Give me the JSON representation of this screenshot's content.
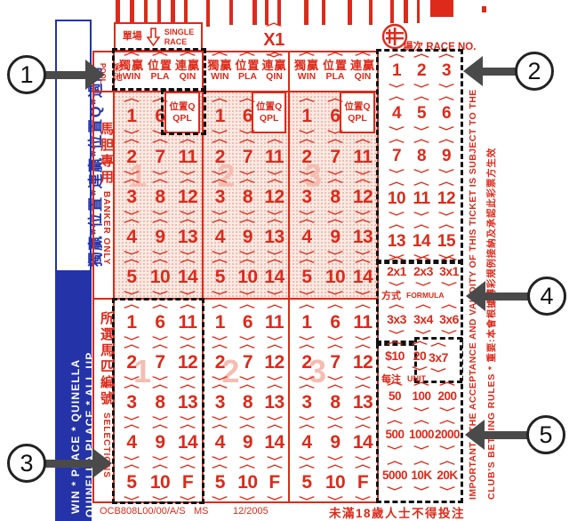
{
  "colors": {
    "red": "#dd2a1a",
    "blue": "#2433a8",
    "pink_shade": "#fbeae4",
    "callout_gray": "#4a4a4a"
  },
  "barcode_bars": [
    [
      130,
      0,
      5,
      30
    ],
    [
      146,
      0,
      5,
      30
    ],
    [
      162,
      0,
      4,
      30
    ],
    [
      177,
      0,
      4,
      30
    ],
    [
      192,
      0,
      5,
      30
    ],
    [
      207,
      0,
      4,
      30
    ],
    [
      232,
      0,
      4,
      30
    ],
    [
      258,
      0,
      4,
      28
    ],
    [
      284,
      0,
      5,
      28
    ],
    [
      298,
      0,
      4,
      28
    ],
    [
      312,
      0,
      4,
      28
    ],
    [
      342,
      0,
      5,
      28
    ],
    [
      362,
      0,
      4,
      28
    ],
    [
      391,
      0,
      5,
      28
    ],
    [
      415,
      0,
      4,
      28
    ],
    [
      439,
      0,
      4,
      26
    ],
    [
      454,
      0,
      5,
      26
    ],
    [
      469,
      0,
      3,
      26
    ],
    [
      484,
      0,
      26,
      19
    ],
    [
      542,
      7,
      5,
      7
    ]
  ],
  "blue_band": {
    "pools_vertical": "獨贏*位置*連贏*位置Q*過關",
    "pools_en_line1": "WIN * PLACE * QUINELLA",
    "pools_en_line2": "QUINELLA PLACE * ALL UP"
  },
  "top": {
    "single_race_zh": "單場",
    "single_race_en_1": "SINGLE",
    "single_race_en_2": "RACE",
    "multiplier": "X1",
    "race_no_label": "場次 RACE NO."
  },
  "gutter": {
    "pool_zh": "彩池",
    "pool_en": "POOL",
    "banker_zh": "馬胆專用",
    "banker_en": "BANKER ONLY",
    "selections_zh": "所選馬匹編號",
    "selections_en": "SELECTIONS"
  },
  "sections": {
    "headers": [
      {
        "zh": "獨贏",
        "en": "WIN"
      },
      {
        "zh": "位置",
        "en": "PLA"
      },
      {
        "zh": "連贏",
        "en": "QIN"
      }
    ],
    "qpl_zh": "位置Q",
    "qpl_en": "QPL",
    "watermarks": [
      "1",
      "2",
      "3"
    ],
    "banker_rows": [
      [
        "1",
        "6"
      ],
      [
        "2",
        "7",
        "11"
      ],
      [
        "3",
        "8",
        "12"
      ],
      [
        "4",
        "9",
        "13"
      ],
      [
        "5",
        "10",
        "14"
      ]
    ],
    "selection_rows": [
      [
        "1",
        "6",
        "11"
      ],
      [
        "2",
        "7",
        "12"
      ],
      [
        "3",
        "8",
        "13"
      ],
      [
        "4",
        "9",
        "14"
      ],
      [
        "5",
        "10",
        "F"
      ]
    ]
  },
  "race_no": {
    "rows": [
      [
        "1",
        "2",
        "3"
      ],
      [
        "4",
        "5",
        "6"
      ],
      [
        "7",
        "8",
        "9"
      ],
      [
        "10",
        "11",
        "12"
      ],
      [
        "13",
        "14",
        "15"
      ]
    ]
  },
  "formula": {
    "label_zh": "方式",
    "label_en": "FORMULA",
    "row1": [
      "2x1",
      "2x3",
      "3x1"
    ],
    "row2": [
      "3x3",
      "3x4",
      "3x6"
    ],
    "extra": "3x7"
  },
  "unit": {
    "label_zh": "每注",
    "label_en": "UNIT",
    "row1": [
      "$10",
      "20"
    ],
    "rows": [
      [
        "50",
        "100",
        "200"
      ],
      [
        "500",
        "1000",
        "2000"
      ],
      [
        "5000",
        "10K",
        "20K"
      ]
    ]
  },
  "side_note": {
    "line1": "IMPORTANT : THE ACCEPTANCE AND VALIDITY OF THIS TICKET IS SUBJECT TO THE",
    "line2": "CLUB'S BETTING RULES * 重要:本會根據博彩規例接納及承認此彩票方生效"
  },
  "footer": {
    "code": "OCB808L00/00/A/S",
    "ms": "MS",
    "date": "12/2005",
    "warning": "未滿18歲人士不得投注"
  },
  "callouts": [
    {
      "label": "1"
    },
    {
      "label": "2"
    },
    {
      "label": "3"
    },
    {
      "label": "4"
    },
    {
      "label": "5"
    }
  ]
}
